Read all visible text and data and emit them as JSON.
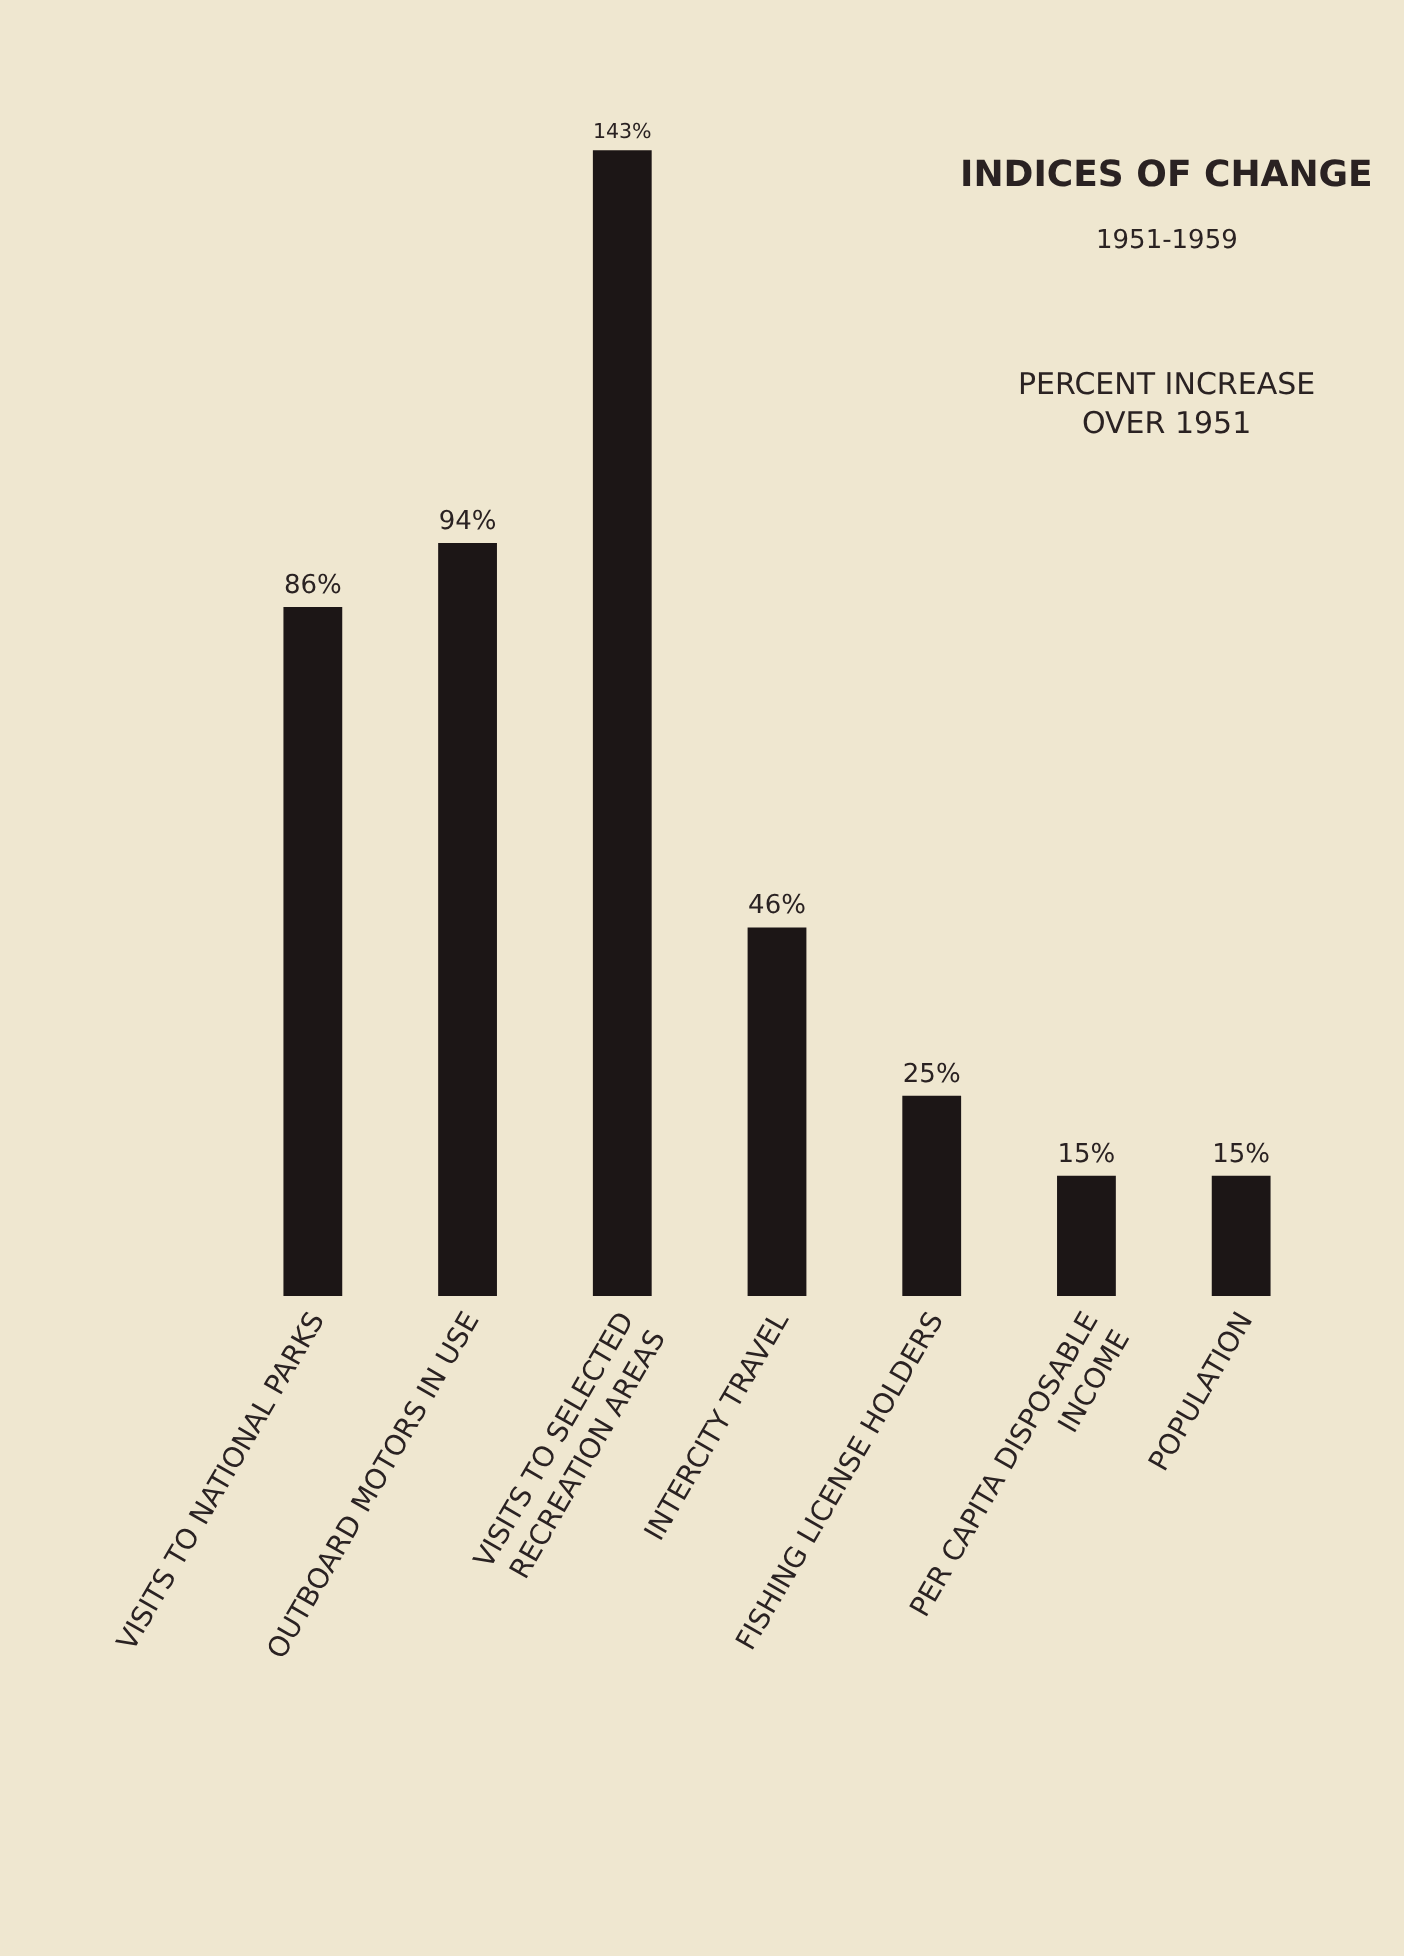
{
  "chart_data": {
    "type": "bar",
    "title": "INDICES OF CHANGE",
    "subtitle": "1951-1959",
    "annotations": [
      "PERCENT INCREASE\nOVER 1951"
    ],
    "categories": [
      "VISITS TO NATIONAL PARKS",
      "OUTBOARD MOTORS IN USE",
      "VISITS TO SELECTED\nRECREATION AREAS",
      "INTERCITY TRAVEL",
      "FISHING LICENSE HOLDERS",
      "PER CAPITA DISPOSABLE\nINCOME",
      "POPULATION"
    ],
    "values": [
      86,
      94,
      143,
      46,
      25,
      15,
      15
    ],
    "value_labels": [
      "86%",
      "94%",
      "143%",
      "46%",
      "25%",
      "15%",
      "15%"
    ],
    "color": "#1c1616",
    "grid": false,
    "legend": false
  }
}
